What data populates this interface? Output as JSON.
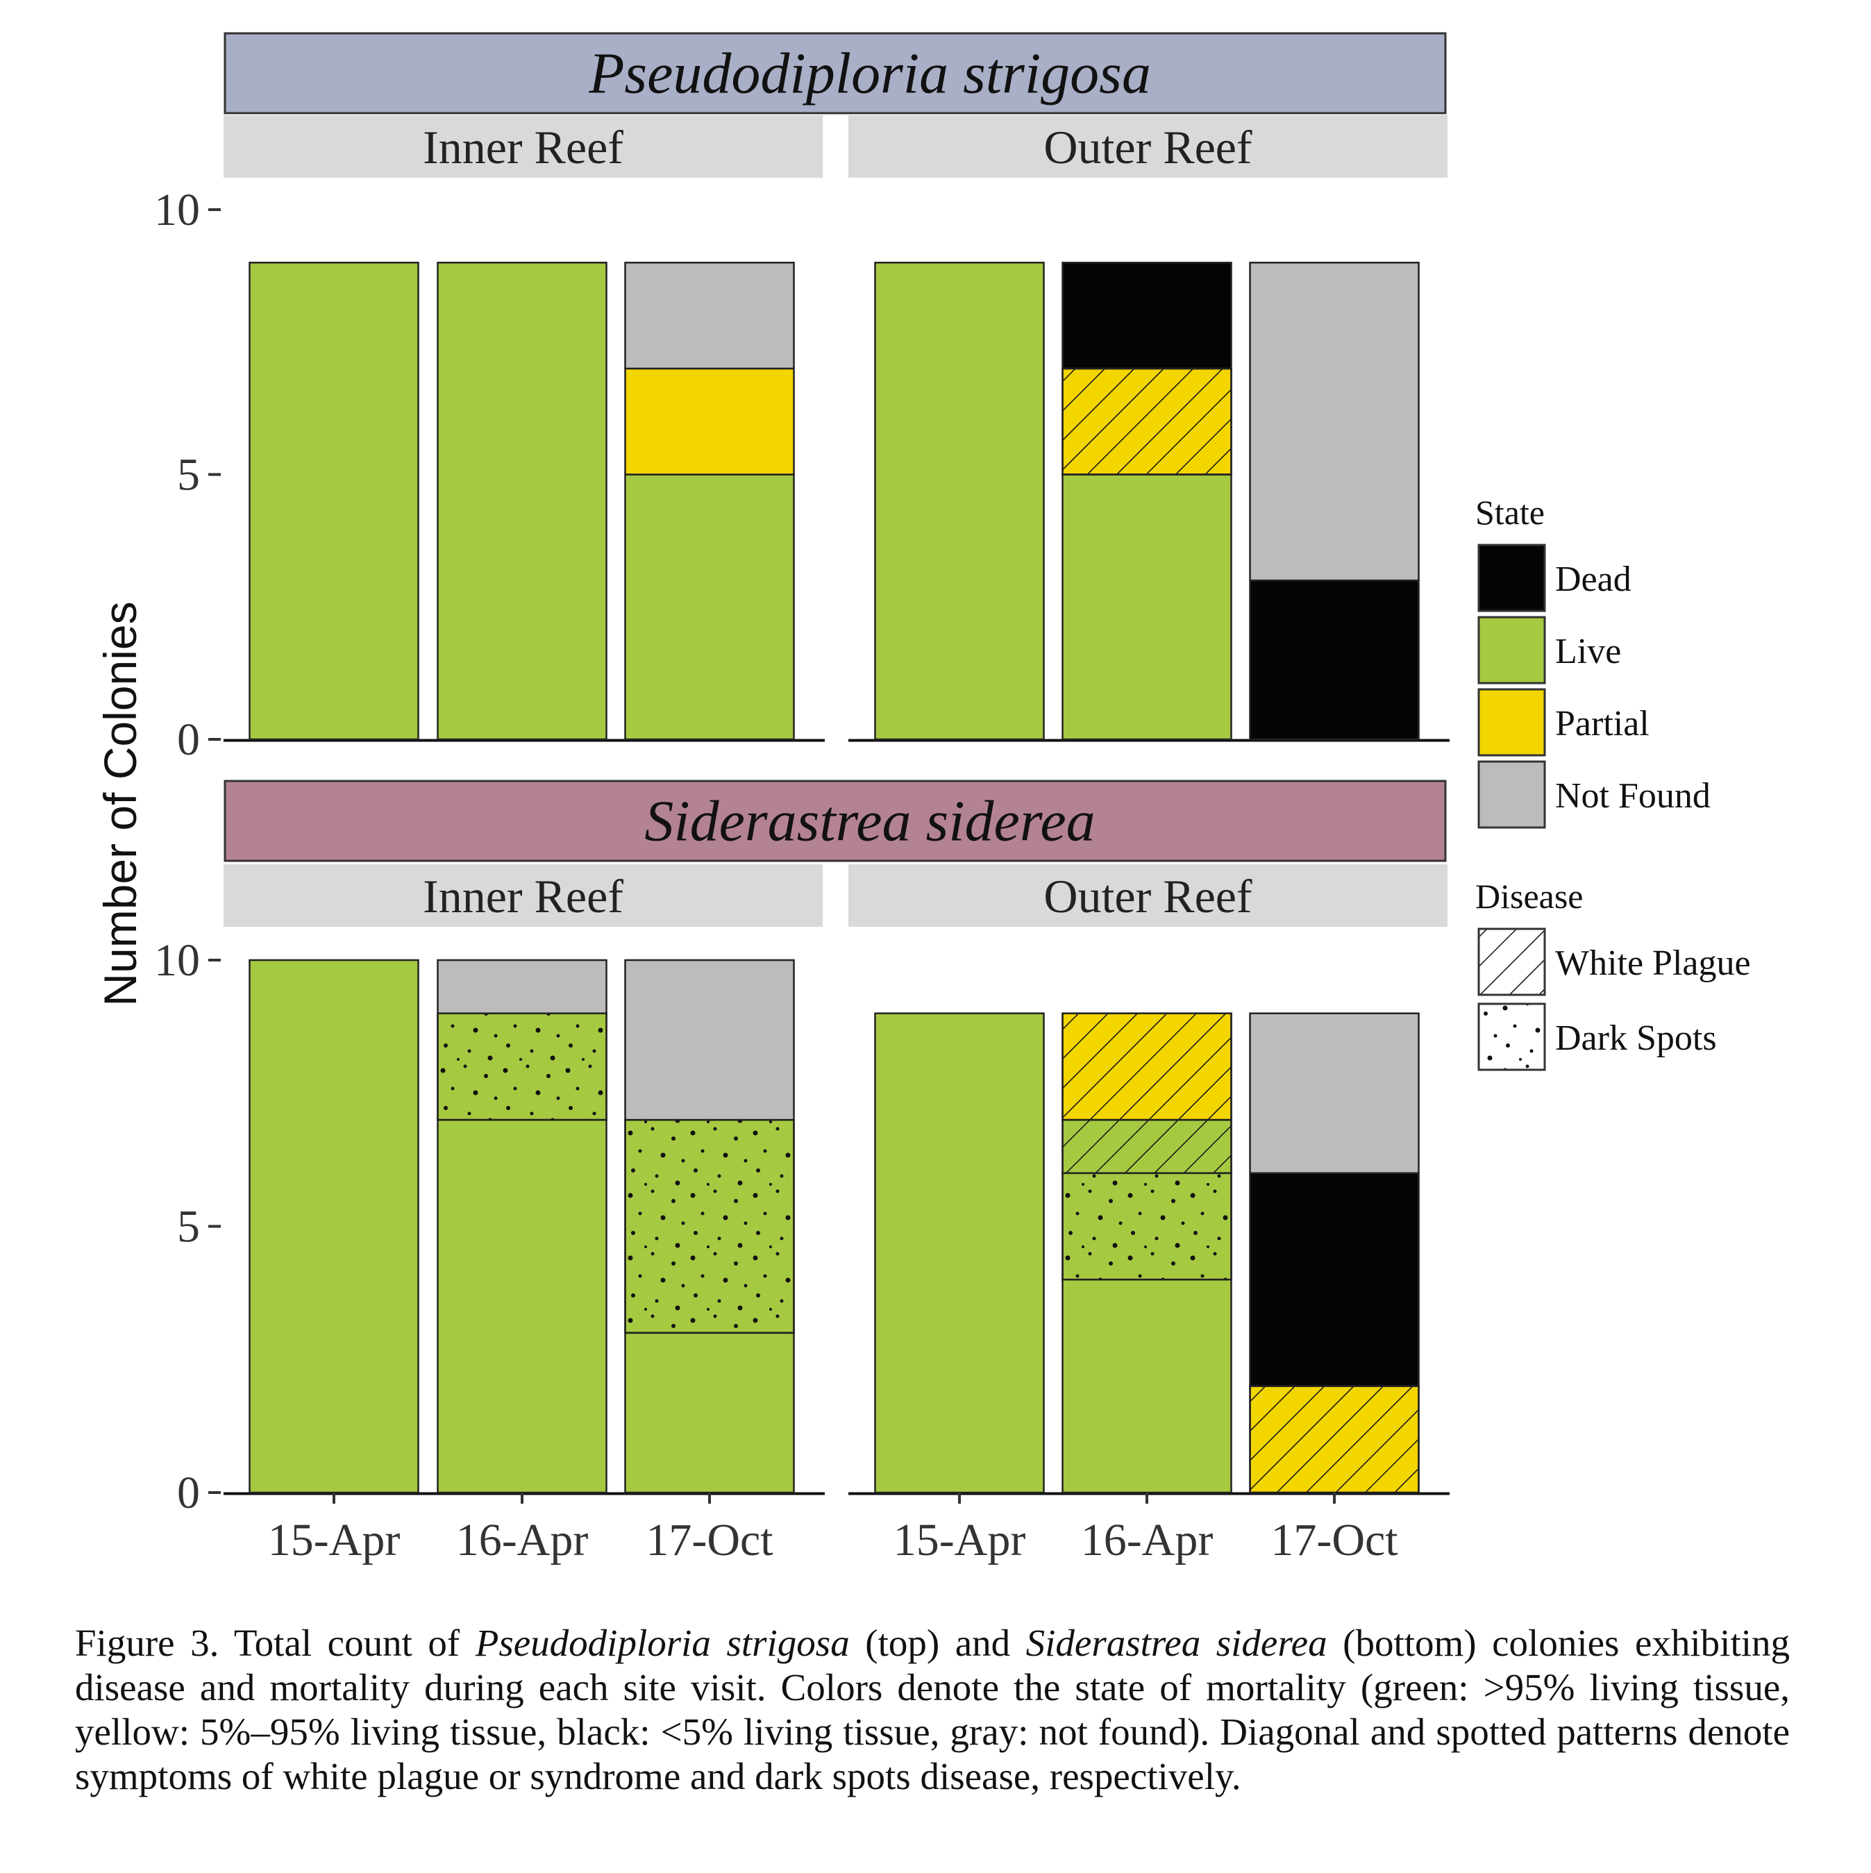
{
  "chart_data": {
    "type": "bar",
    "stacked": true,
    "y_axis_label": "Number of Colonies",
    "ylim": [
      0,
      10
    ],
    "yticks": [
      0,
      5,
      10
    ],
    "categories": [
      "15-Apr",
      "16-Apr",
      "17-Oct"
    ],
    "legend": {
      "placement": "right",
      "state_title": "State",
      "state_items": [
        {
          "key": "dead",
          "label": "Dead",
          "color": "#050505"
        },
        {
          "key": "live",
          "label": "Live",
          "color": "#a6c942"
        },
        {
          "key": "partial",
          "label": "Partial",
          "color": "#f3d500"
        },
        {
          "key": "notfound",
          "label": "Not Found",
          "color": "#bcbcbc"
        }
      ],
      "disease_title": "Disease",
      "disease_items": [
        {
          "key": "wp",
          "label": "White Plague"
        },
        {
          "key": "ds",
          "label": "Dark Spots"
        }
      ]
    },
    "panels": [
      {
        "species": "Pseudodiploria strigosa",
        "strip_color": "#a9afc6",
        "facets": [
          {
            "name": "Inner Reef",
            "bars": [
              {
                "category": "15-Apr",
                "segments": [
                  {
                    "state": "live",
                    "disease": null,
                    "count": 9
                  }
                ]
              },
              {
                "category": "16-Apr",
                "segments": [
                  {
                    "state": "live",
                    "disease": null,
                    "count": 9
                  }
                ]
              },
              {
                "category": "17-Oct",
                "segments": [
                  {
                    "state": "live",
                    "disease": null,
                    "count": 5
                  },
                  {
                    "state": "partial",
                    "disease": null,
                    "count": 2
                  },
                  {
                    "state": "notfound",
                    "disease": null,
                    "count": 2
                  }
                ]
              }
            ]
          },
          {
            "name": "Outer Reef",
            "bars": [
              {
                "category": "15-Apr",
                "segments": [
                  {
                    "state": "live",
                    "disease": null,
                    "count": 9
                  }
                ]
              },
              {
                "category": "16-Apr",
                "segments": [
                  {
                    "state": "live",
                    "disease": null,
                    "count": 5
                  },
                  {
                    "state": "partial",
                    "disease": "wp",
                    "count": 2
                  },
                  {
                    "state": "dead",
                    "disease": null,
                    "count": 2
                  }
                ]
              },
              {
                "category": "17-Oct",
                "segments": [
                  {
                    "state": "dead",
                    "disease": null,
                    "count": 3
                  },
                  {
                    "state": "notfound",
                    "disease": null,
                    "count": 6
                  }
                ]
              }
            ]
          }
        ]
      },
      {
        "species": "Siderastrea siderea",
        "strip_color": "#b48392",
        "facets": [
          {
            "name": "Inner Reef",
            "bars": [
              {
                "category": "15-Apr",
                "segments": [
                  {
                    "state": "live",
                    "disease": null,
                    "count": 10
                  }
                ]
              },
              {
                "category": "16-Apr",
                "segments": [
                  {
                    "state": "live",
                    "disease": null,
                    "count": 7
                  },
                  {
                    "state": "live",
                    "disease": "ds",
                    "count": 2
                  },
                  {
                    "state": "notfound",
                    "disease": null,
                    "count": 1
                  }
                ]
              },
              {
                "category": "17-Oct",
                "segments": [
                  {
                    "state": "live",
                    "disease": null,
                    "count": 3
                  },
                  {
                    "state": "live",
                    "disease": "ds",
                    "count": 4
                  },
                  {
                    "state": "notfound",
                    "disease": null,
                    "count": 3
                  }
                ]
              }
            ]
          },
          {
            "name": "Outer Reef",
            "bars": [
              {
                "category": "15-Apr",
                "segments": [
                  {
                    "state": "live",
                    "disease": null,
                    "count": 9
                  }
                ]
              },
              {
                "category": "16-Apr",
                "segments": [
                  {
                    "state": "live",
                    "disease": null,
                    "count": 4
                  },
                  {
                    "state": "live",
                    "disease": "ds",
                    "count": 2
                  },
                  {
                    "state": "live",
                    "disease": "wp",
                    "count": 1
                  },
                  {
                    "state": "partial",
                    "disease": "wp",
                    "count": 2
                  }
                ]
              },
              {
                "category": "17-Oct",
                "segments": [
                  {
                    "state": "partial",
                    "disease": "wp",
                    "count": 2
                  },
                  {
                    "state": "dead",
                    "disease": null,
                    "count": 4
                  },
                  {
                    "state": "notfound",
                    "disease": null,
                    "count": 3
                  }
                ]
              }
            ]
          }
        ]
      }
    ]
  },
  "caption": {
    "figure_label": "Figure 3. Total count of ",
    "species_1": "Pseudodiploria strigosa",
    "part_2": " (top) and ",
    "species_2": "Siderastrea siderea",
    "part_3": " (bottom) colonies exhibiting disease and mortality during each site visit. Colors denote the state of mortality (green: >95% living tissue, yellow: 5%–95% living tissue, black: <5% living tissue, gray: not found). Diagonal and spotted patterns denote symptoms of white plague or syndrome and dark spots disease, respectively."
  }
}
